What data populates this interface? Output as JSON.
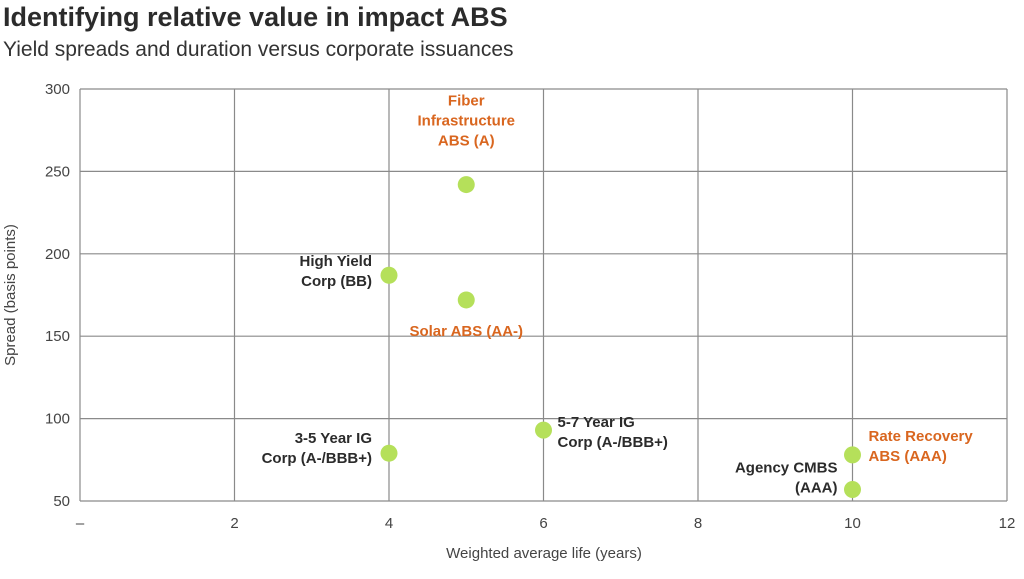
{
  "title": "Identifying relative value in impact ABS",
  "subtitle": "Yield spreads and duration versus corporate issuances",
  "colors": {
    "point": "#b5e05a",
    "label_dark": "#2b2b2b",
    "label_orange": "#d9661f",
    "grid": "#8a8a8a"
  },
  "chart_data": {
    "type": "scatter",
    "xlabel": "Weighted average life (years)",
    "ylabel": "Spread (basis points)",
    "xlim": [
      0,
      12
    ],
    "ylim": [
      50,
      300
    ],
    "x_ticks": [
      0,
      2,
      4,
      6,
      8,
      10,
      12
    ],
    "x_tick_labels": [
      "–",
      "2",
      "4",
      "6",
      "8",
      "10",
      "12"
    ],
    "y_ticks": [
      50,
      100,
      150,
      200,
      250,
      300
    ],
    "y_tick_labels": [
      "50",
      "100",
      "150",
      "200",
      "250",
      "300"
    ],
    "grid": true,
    "points": [
      {
        "label_lines": [
          "Fiber",
          "Infrastructure",
          "ABS (A)"
        ],
        "x": 5,
        "y": 242,
        "highlight": true
      },
      {
        "label_lines": [
          "High Yield",
          "Corp (BB)"
        ],
        "x": 4,
        "y": 187,
        "highlight": false
      },
      {
        "label_lines": [
          "Solar ABS (AA-)"
        ],
        "x": 5,
        "y": 172,
        "highlight": true
      },
      {
        "label_lines": [
          "3-5 Year IG",
          "Corp (A-/BBB+)"
        ],
        "x": 4,
        "y": 79,
        "highlight": false
      },
      {
        "label_lines": [
          "5-7 Year IG",
          "Corp (A-/BBB+)"
        ],
        "x": 6,
        "y": 93,
        "highlight": false
      },
      {
        "label_lines": [
          "Rate Recovery",
          "ABS (AAA)"
        ],
        "x": 10,
        "y": 78,
        "highlight": true
      },
      {
        "label_lines": [
          "Agency CMBS",
          "(AAA)"
        ],
        "x": 10,
        "y": 57,
        "highlight": false
      }
    ]
  }
}
